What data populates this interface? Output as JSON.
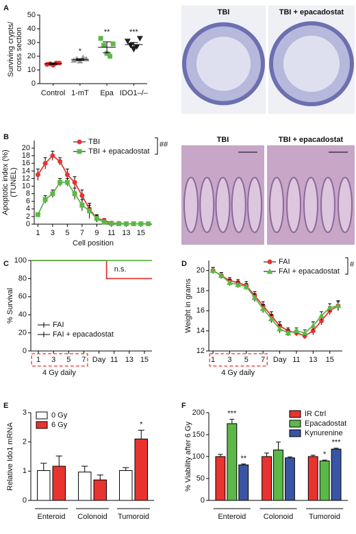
{
  "chart_data": [
    {
      "panel": "A",
      "type": "dot",
      "ylabel": [
        "Surviving crypts/",
        "cross section"
      ],
      "categories": [
        "Control",
        "1-mT",
        "Epa",
        "IDO1–/–"
      ],
      "colors": [
        "#e8332f",
        "#999999",
        "#5cb848",
        "#222222"
      ],
      "points": [
        [
          14,
          14.5,
          13.5,
          15,
          15
        ],
        [
          17,
          18,
          16.5,
          19,
          18
        ],
        [
          33,
          28,
          22,
          20,
          29
        ],
        [
          31,
          28,
          25,
          27,
          33
        ]
      ],
      "means": [
        14.5,
        17.5,
        26.5,
        28.5
      ],
      "sems": [
        0.6,
        0.6,
        4,
        1.5
      ],
      "significance": [
        null,
        "*",
        "**",
        "***"
      ],
      "ylim": [
        0,
        50
      ],
      "yticks": [
        0,
        10,
        20,
        30,
        40,
        50
      ]
    },
    {
      "panel": "B",
      "type": "line",
      "ylabel": [
        "Apoptotic index (%)",
        "(TUNEL)"
      ],
      "xlabel": "Cell position",
      "x": [
        1,
        2,
        3,
        4,
        5,
        6,
        7,
        8,
        9,
        10,
        11,
        12,
        13,
        14,
        15,
        16
      ],
      "series": [
        {
          "name": "TBI",
          "color": "#e8332f",
          "marker": "circle",
          "values": [
            13,
            16,
            18,
            16.5,
            13,
            11,
            7.5,
            4,
            1.5,
            1,
            0.3,
            0.2,
            0.1,
            0.1,
            0.1,
            0.1
          ],
          "errors": [
            1.5,
            1.5,
            1.2,
            1,
            1.5,
            1.5,
            1.5,
            1,
            0.8,
            0.5,
            0.2,
            0.2,
            0.1,
            0.1,
            0.1,
            0.1
          ]
        },
        {
          "name": "TBI + epacadostat",
          "color": "#5cb848",
          "marker": "square",
          "values": [
            2.5,
            6.5,
            8,
            11,
            11,
            8,
            5,
            3.5,
            1.5,
            0.5,
            0.2,
            0.1,
            0.1,
            0.1,
            0.1,
            0.1
          ],
          "errors": [
            0.5,
            1,
            1,
            1,
            1,
            1.5,
            1.5,
            2,
            1,
            0.5,
            0.2,
            0.1,
            0.1,
            0.1,
            0.1,
            0.1
          ]
        }
      ],
      "xlim": [
        0.5,
        16.5
      ],
      "xticks": [
        1,
        3,
        5,
        7,
        9,
        11,
        13,
        15
      ],
      "ylim": [
        0,
        22
      ],
      "yticks": [
        0,
        2,
        4,
        6,
        8,
        10,
        12,
        14,
        16,
        18,
        20
      ],
      "legend": "upper right",
      "annotation": "##"
    },
    {
      "panel": "C",
      "type": "line",
      "ylabel": [
        "% Survival"
      ],
      "series": [
        {
          "name": "FAI",
          "color": "#e8332f",
          "x": [
            0,
            10,
            10,
            16
          ],
          "values": [
            100,
            100,
            80,
            80
          ]
        },
        {
          "name": "FAI + epacadostat",
          "color": "#5cb848",
          "x": [
            0,
            16
          ],
          "values": [
            100,
            100
          ]
        }
      ],
      "xlim": [
        0,
        16
      ],
      "xticks": [
        1,
        3,
        5,
        7,
        {
          "value": 9,
          "label": "Day"
        },
        11,
        13,
        15
      ],
      "ylim": [
        0,
        100
      ],
      "yticks": [
        0,
        20,
        40,
        60,
        80,
        100
      ],
      "legend": "center left",
      "annotation": "n.s.",
      "dosing_label": "4 Gy daily"
    },
    {
      "panel": "D",
      "type": "line",
      "ylabel": [
        "Weight in grams"
      ],
      "x": [
        1,
        2,
        3,
        4,
        5,
        6,
        7,
        8,
        9,
        10,
        11,
        12,
        13,
        14,
        15,
        16
      ],
      "series": [
        {
          "name": "FAI",
          "color": "#e8332f",
          "marker": "circle",
          "values": [
            20,
            19.5,
            19,
            18.8,
            18.5,
            17.5,
            16.5,
            15.5,
            14.5,
            14,
            13.8,
            13.5,
            14,
            15,
            16,
            16.5
          ],
          "errors": [
            0.3,
            0.3,
            0.3,
            0.3,
            0.4,
            0.4,
            0.4,
            0.4,
            0.4,
            0.3,
            0.3,
            0.3,
            0.4,
            0.4,
            0.4,
            0.5
          ]
        },
        {
          "name": "FAI + epacadostat",
          "color": "#5cb848",
          "marker": "triangle",
          "values": [
            20,
            19.5,
            18.8,
            18.6,
            18.4,
            17.3,
            16.2,
            15.2,
            14.2,
            13.8,
            14,
            13.8,
            14.5,
            15.5,
            16.3,
            16.5
          ],
          "errors": [
            0.3,
            0.3,
            0.3,
            0.3,
            0.3,
            0.4,
            0.4,
            0.4,
            0.4,
            0.3,
            0.3,
            0.3,
            0.4,
            0.4,
            0.4,
            0.4
          ]
        }
      ],
      "xlim": [
        0.5,
        16.5
      ],
      "xticks": [
        1,
        3,
        5,
        7,
        {
          "value": 9,
          "label": "Day"
        },
        11,
        13,
        15
      ],
      "ylim": [
        12,
        21
      ],
      "yticks": [
        12,
        14,
        16,
        18,
        20
      ],
      "legend": "upper right",
      "annotation": "#",
      "dosing_label": "4 Gy daily"
    },
    {
      "panel": "E",
      "type": "bar",
      "ylabel": [
        "Relative Ido1 mRNA"
      ],
      "categories": [
        "Enteroid",
        "Colonoid",
        "Tumoroid"
      ],
      "series": [
        {
          "name": "0 Gy",
          "color": "#ffffff",
          "values": [
            1.02,
            0.97,
            1.02
          ],
          "errors": [
            0.25,
            0.2,
            0.1
          ],
          "significance": [
            null,
            null,
            null
          ]
        },
        {
          "name": "6 Gy",
          "color": "#e8332f",
          "values": [
            1.17,
            0.7,
            2.1
          ],
          "errors": [
            0.35,
            0.17,
            0.3
          ],
          "significance": [
            null,
            null,
            "*"
          ]
        }
      ],
      "ylim": [
        0,
        3
      ],
      "yticks": [
        0,
        1,
        2,
        3
      ],
      "legend": "upper left"
    },
    {
      "panel": "F",
      "type": "bar",
      "ylabel": [
        "% Viability after 6 Gy"
      ],
      "categories": [
        "Enteroid",
        "Colonoid",
        "Tumoroid"
      ],
      "series": [
        {
          "name": "IR Ctrl",
          "color": "#e8332f",
          "values": [
            100,
            100,
            100
          ],
          "errors": [
            5,
            8,
            3
          ],
          "significance": [
            null,
            null,
            null
          ]
        },
        {
          "name": "Epacadostat",
          "color": "#5cb848",
          "values": [
            175,
            115,
            90
          ],
          "errors": [
            10,
            18,
            2
          ],
          "significance": [
            "***",
            null,
            "*"
          ]
        },
        {
          "name": "Kynurenine",
          "color": "#3a54a4",
          "values": [
            81,
            97,
            117
          ],
          "errors": [
            2,
            2,
            2
          ],
          "significance": [
            "**",
            null,
            "***"
          ]
        }
      ],
      "ylim": [
        0,
        200
      ],
      "yticks": [
        0,
        50,
        100,
        150,
        200
      ],
      "legend": "upper right"
    }
  ],
  "images": [
    {
      "labels": [
        "TBI",
        "TBI + epacadostat"
      ]
    },
    {
      "labels": [
        "TBI",
        "TBI + epacadostat"
      ]
    }
  ]
}
